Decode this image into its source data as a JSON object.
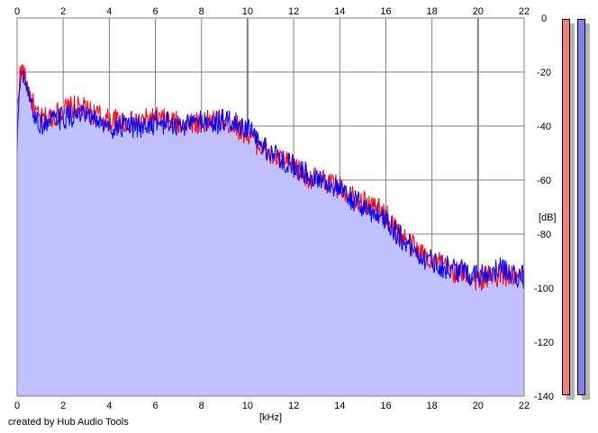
{
  "chart_data": {
    "type": "area",
    "xlabel": "[kHz]",
    "ylabel": "[dB]",
    "xlim": [
      0,
      22
    ],
    "ylim": [
      -140,
      0
    ],
    "x_ticks": [
      0,
      2,
      4,
      6,
      8,
      10,
      12,
      14,
      16,
      18,
      20,
      22
    ],
    "y_ticks": [
      0,
      -20,
      -40,
      -60,
      -80,
      -100,
      -120,
      -140
    ],
    "grid": true,
    "series": [
      {
        "color": "#ff0000",
        "points": [
          [
            0,
            -35
          ],
          [
            0.1,
            -22
          ],
          [
            0.2,
            -19
          ],
          [
            0.4,
            -24
          ],
          [
            0.6,
            -30
          ],
          [
            0.8,
            -35
          ],
          [
            1.0,
            -38
          ],
          [
            1.3,
            -37
          ],
          [
            1.6,
            -36
          ],
          [
            2.0,
            -34
          ],
          [
            2.5,
            -33
          ],
          [
            3.0,
            -34
          ],
          [
            3.5,
            -36
          ],
          [
            4.0,
            -38
          ],
          [
            4.5,
            -38
          ],
          [
            5.0,
            -39
          ],
          [
            5.5,
            -38
          ],
          [
            6.0,
            -37
          ],
          [
            6.5,
            -38
          ],
          [
            7.0,
            -39
          ],
          [
            7.5,
            -38
          ],
          [
            8.0,
            -39
          ],
          [
            8.5,
            -38
          ],
          [
            9.0,
            -38
          ],
          [
            9.5,
            -40
          ],
          [
            10.0,
            -43
          ],
          [
            10.5,
            -47
          ],
          [
            11.0,
            -51
          ],
          [
            11.5,
            -53
          ],
          [
            12.0,
            -55
          ],
          [
            12.5,
            -58
          ],
          [
            13.0,
            -60
          ],
          [
            13.5,
            -61
          ],
          [
            14.0,
            -63
          ],
          [
            14.5,
            -65
          ],
          [
            15.0,
            -68
          ],
          [
            15.5,
            -70
          ],
          [
            16.0,
            -73
          ],
          [
            16.5,
            -79
          ],
          [
            17.0,
            -83
          ],
          [
            17.5,
            -87
          ],
          [
            18.0,
            -89
          ],
          [
            18.5,
            -92
          ],
          [
            19.0,
            -94
          ],
          [
            19.5,
            -95
          ],
          [
            20.0,
            -97
          ],
          [
            20.5,
            -96
          ],
          [
            21.0,
            -95
          ],
          [
            21.5,
            -96
          ],
          [
            22.0,
            -97
          ]
        ]
      },
      {
        "color": "#0000ff",
        "points": [
          [
            0,
            -50
          ],
          [
            0.1,
            -24
          ],
          [
            0.2,
            -21
          ],
          [
            0.4,
            -26
          ],
          [
            0.6,
            -32
          ],
          [
            0.8,
            -37
          ],
          [
            1.0,
            -39
          ],
          [
            1.3,
            -39
          ],
          [
            1.6,
            -38
          ],
          [
            2.0,
            -37
          ],
          [
            2.5,
            -36
          ],
          [
            3.0,
            -37
          ],
          [
            3.5,
            -38
          ],
          [
            4.0,
            -41
          ],
          [
            4.5,
            -40
          ],
          [
            5.0,
            -41
          ],
          [
            5.5,
            -40
          ],
          [
            6.0,
            -39
          ],
          [
            6.5,
            -39
          ],
          [
            7.0,
            -40
          ],
          [
            7.5,
            -39
          ],
          [
            8.0,
            -38
          ],
          [
            8.5,
            -39
          ],
          [
            9.0,
            -38
          ],
          [
            9.5,
            -39
          ],
          [
            10.0,
            -41
          ],
          [
            10.5,
            -46
          ],
          [
            11.0,
            -50
          ],
          [
            11.5,
            -52
          ],
          [
            12.0,
            -55
          ],
          [
            12.5,
            -57
          ],
          [
            13.0,
            -59
          ],
          [
            13.5,
            -61
          ],
          [
            14.0,
            -64
          ],
          [
            14.5,
            -67
          ],
          [
            15.0,
            -70
          ],
          [
            15.5,
            -72
          ],
          [
            16.0,
            -74
          ],
          [
            16.5,
            -80
          ],
          [
            17.0,
            -84
          ],
          [
            17.5,
            -88
          ],
          [
            18.0,
            -90
          ],
          [
            18.5,
            -92
          ],
          [
            19.0,
            -93
          ],
          [
            19.5,
            -94
          ],
          [
            20.0,
            -95
          ],
          [
            20.5,
            -94
          ],
          [
            21.0,
            -93
          ],
          [
            21.5,
            -95
          ],
          [
            22.0,
            -96
          ]
        ]
      }
    ],
    "fill_color": "#c0c0ff",
    "meters": [
      {
        "color": "#f08080"
      },
      {
        "color": "#8080f0"
      }
    ]
  },
  "footer": {
    "credit": "created by Hub Audio Tools"
  }
}
